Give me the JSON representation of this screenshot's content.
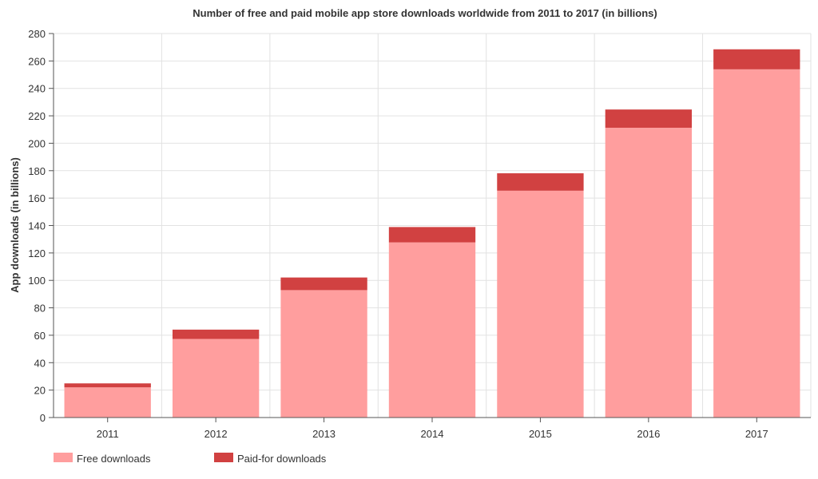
{
  "chart_data": {
    "type": "bar",
    "stacked": true,
    "title": "Number of free and paid mobile app store downloads worldwide from 2011 to 2017 (in billions)",
    "xlabel": "",
    "ylabel": "App downloads (in billions)",
    "categories": [
      "2011",
      "2012",
      "2013",
      "2014",
      "2015",
      "2016",
      "2017"
    ],
    "series": [
      {
        "name": "Free downloads",
        "color": "#ff9e9e",
        "values": [
          22,
          57.3,
          92.9,
          127.7,
          165.4,
          211.3,
          253.9
        ]
      },
      {
        "name": "Paid-for downloads",
        "color": "#d14141",
        "values": [
          2.9,
          6.8,
          9.2,
          11.2,
          12.7,
          13.3,
          14.6
        ]
      }
    ],
    "ylim": [
      0,
      280
    ],
    "yticks": [
      0,
      20,
      40,
      60,
      80,
      100,
      120,
      140,
      160,
      180,
      200,
      220,
      240,
      260,
      280
    ],
    "grid": true,
    "legend_position": "bottom-left"
  }
}
